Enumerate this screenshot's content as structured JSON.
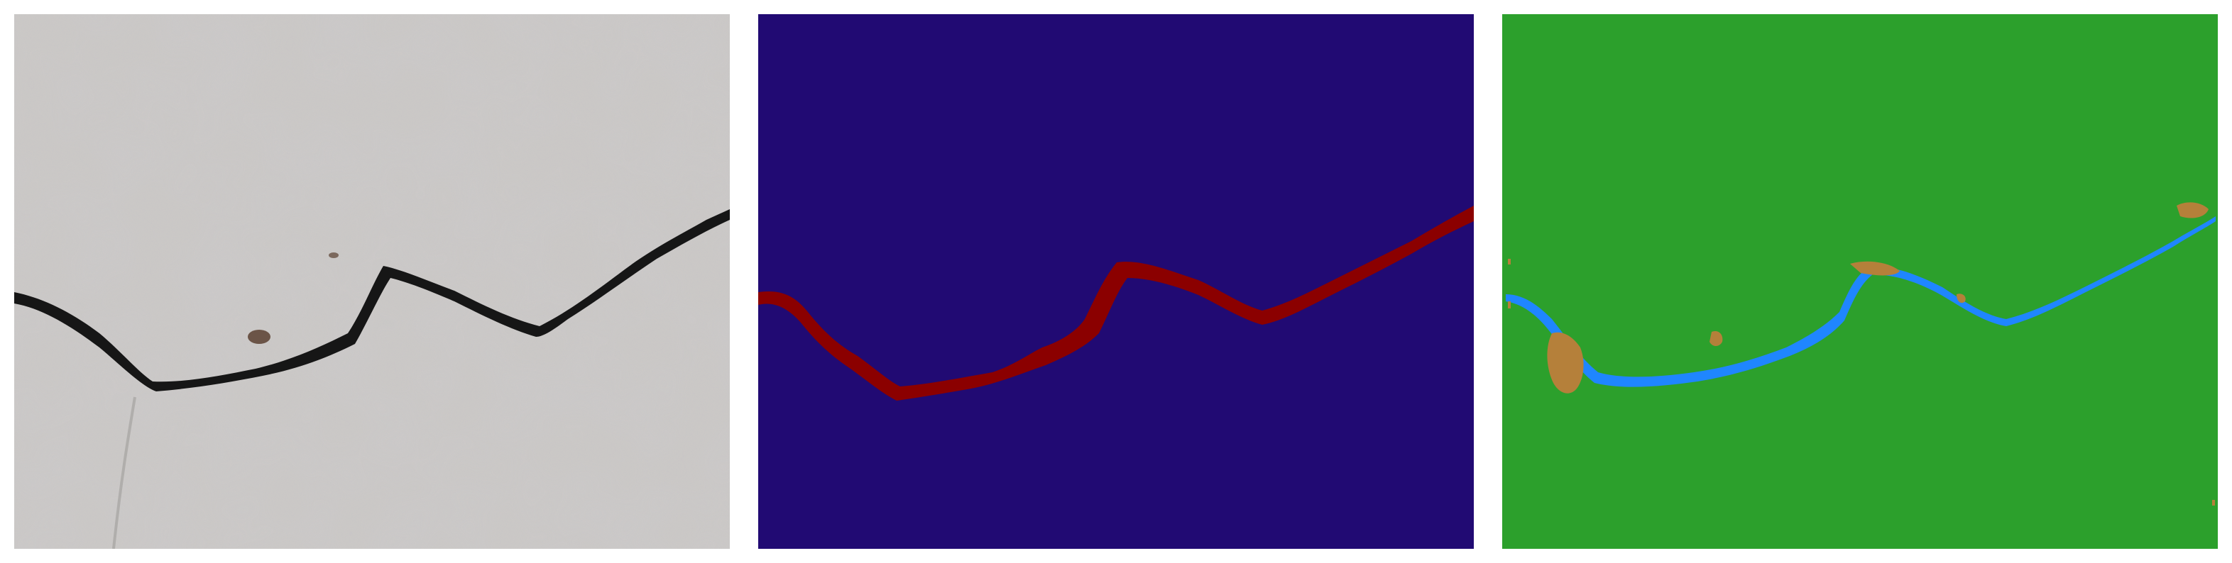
{
  "figure": {
    "panels": [
      {
        "role": "photo",
        "description_tag": "concrete-crack-photo"
      },
      {
        "role": "ground-truth",
        "description_tag": "crack-mask"
      },
      {
        "role": "prediction",
        "description_tag": "crack-prediction"
      }
    ],
    "colors": {
      "concrete": "#c9c6c4",
      "crack_dark": "#1c1c1c",
      "mask_background": "#210a73",
      "mask_crack": "#8b0000",
      "pred_background": "#2ca02c",
      "pred_crack": "#1f86ff",
      "pred_noise": "#b5803a"
    }
  }
}
